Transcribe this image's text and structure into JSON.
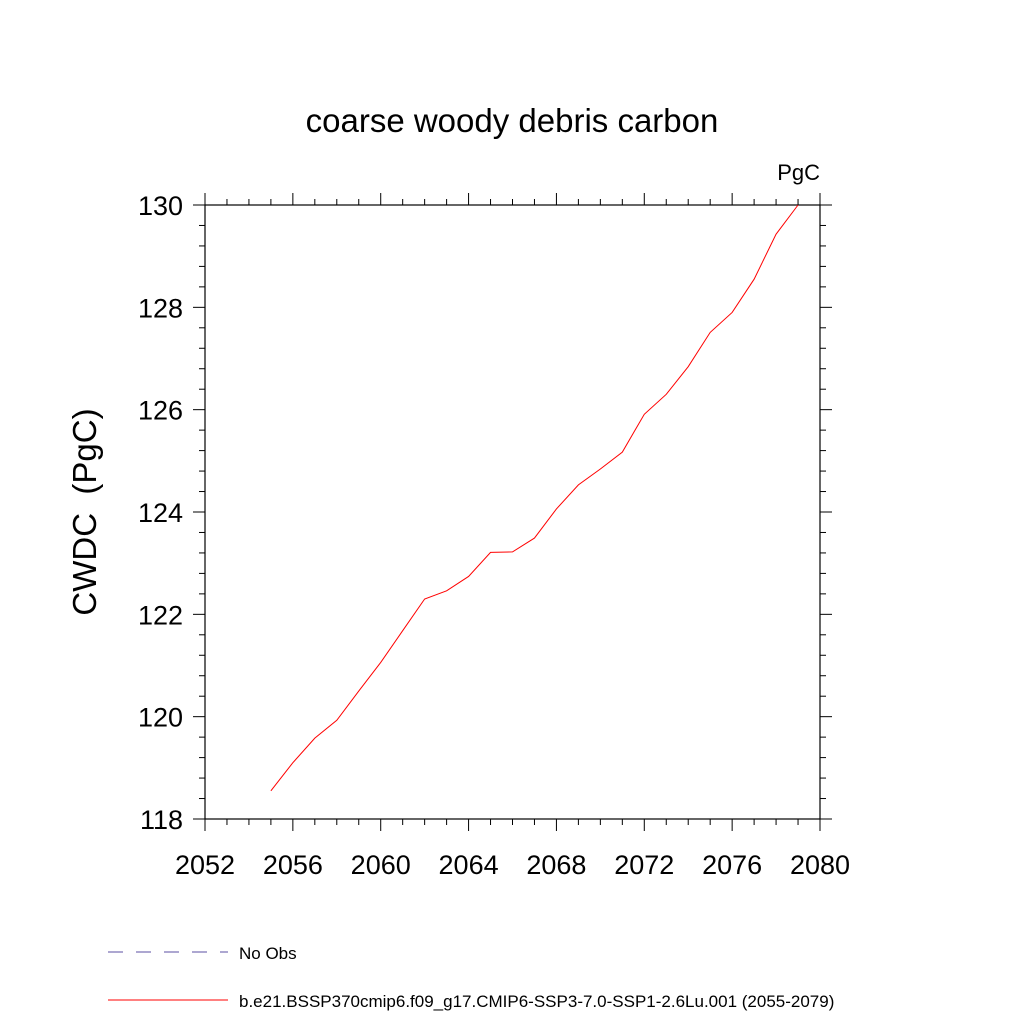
{
  "chart_data": {
    "type": "line",
    "title": "coarse woody debris carbon",
    "units_label": "PgC",
    "ylabel": "CWDC  (PgC)",
    "xlabel": "",
    "xlim": [
      2052,
      2080
    ],
    "ylim": [
      118,
      130
    ],
    "x_ticks": [
      2052,
      2056,
      2060,
      2064,
      2068,
      2072,
      2076,
      2080
    ],
    "y_ticks": [
      118,
      120,
      122,
      124,
      126,
      128,
      130
    ],
    "grid": false,
    "series": [
      {
        "name": "b.e21.BSSP370cmip6.f09_g17.CMIP6-SSP3-7.0-SSP1-2.6Lu.001 (2055-2079)",
        "color": "#ff0000",
        "x": [
          2055,
          2056,
          2057,
          2058,
          2059,
          2060,
          2061,
          2062,
          2063,
          2064,
          2065,
          2066,
          2067,
          2068,
          2069,
          2070,
          2071,
          2072,
          2073,
          2074,
          2075,
          2076,
          2077,
          2078,
          2079
        ],
        "y": [
          118.55,
          119.1,
          119.58,
          119.93,
          120.5,
          121.06,
          121.68,
          122.3,
          122.46,
          122.74,
          123.21,
          123.22,
          123.49,
          124.06,
          124.53,
          124.84,
          125.17,
          125.91,
          126.3,
          126.84,
          127.51,
          127.9,
          128.55,
          129.43,
          130.0
        ]
      }
    ],
    "legend": [
      {
        "label": "No Obs",
        "color": "#5b4fa3",
        "style": "dashed"
      },
      {
        "label": "b.e21.BSSP370cmip6.f09_g17.CMIP6-SSP3-7.0-SSP1-2.6Lu.001 (2055-2079)",
        "color": "#ff0000",
        "style": "solid"
      }
    ],
    "legend_position": "bottom"
  }
}
